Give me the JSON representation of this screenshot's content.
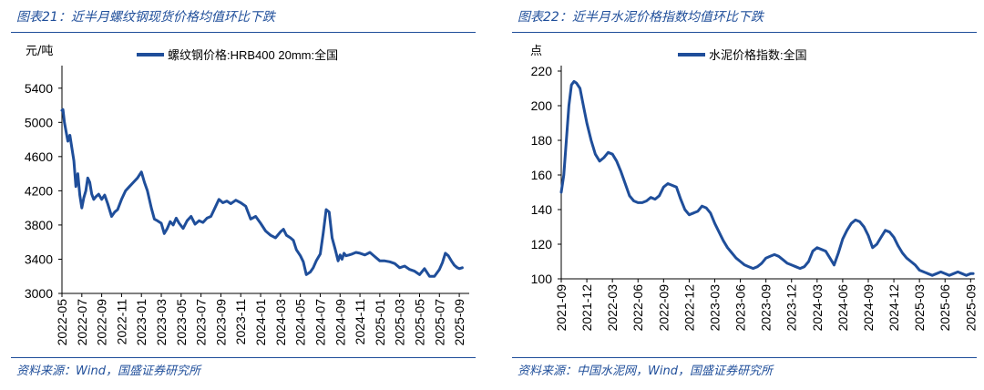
{
  "chart_data": [
    {
      "type": "line",
      "figure_title": "图表21：近半月螺纹钢现货价格均值环比下跌",
      "unit_label": "元/吨",
      "legend": "螺纹钢价格:HRB400 20mm:全国",
      "source": "资料来源：Wind，国盛证券研究所",
      "line_color": "#1f4e9a",
      "ylim": [
        3000,
        5600
      ],
      "yticks": [
        3000,
        3400,
        3800,
        4200,
        4600,
        5000,
        5400
      ],
      "xlim": [
        0,
        41
      ],
      "xtick_positions": [
        0,
        2,
        4,
        6,
        8,
        10,
        12,
        14,
        16,
        18,
        20,
        22,
        24,
        26,
        28,
        30,
        32,
        34,
        36,
        38,
        40
      ],
      "xtick_labels": [
        "2022-05",
        "2022-07",
        "2022-09",
        "2022-11",
        "2023-01",
        "2023-03",
        "2023-05",
        "2023-07",
        "2023-09",
        "2023-11",
        "2024-01",
        "2024-03",
        "2024-05",
        "2024-07",
        "2024-09",
        "2024-11",
        "2025-01",
        "2025-03",
        "2025-05",
        "2025-07",
        "2025-09"
      ],
      "x": [
        0,
        0.1,
        0.25,
        0.4,
        0.6,
        0.8,
        1.0,
        1.2,
        1.4,
        1.6,
        1.8,
        2.0,
        2.2,
        2.4,
        2.6,
        2.8,
        3.0,
        3.2,
        3.4,
        3.7,
        4.0,
        4.3,
        4.6,
        5.0,
        5.3,
        5.6,
        6.0,
        6.4,
        6.8,
        7.2,
        7.6,
        8.0,
        8.3,
        8.6,
        9.0,
        9.3,
        9.6,
        10.0,
        10.3,
        10.6,
        10.9,
        11.2,
        11.5,
        11.8,
        12.2,
        12.6,
        13.0,
        13.4,
        13.8,
        14.2,
        14.6,
        15.0,
        15.4,
        15.8,
        16.2,
        16.6,
        17.0,
        17.5,
        18.0,
        18.5,
        19.0,
        19.5,
        20.0,
        20.5,
        21.0,
        21.5,
        22.0,
        22.3,
        22.6,
        23.0,
        23.3,
        23.6,
        24.0,
        24.3,
        24.6,
        25.0,
        25.3,
        25.6,
        26.0,
        26.3,
        26.6,
        26.9,
        27.2,
        27.5,
        27.8,
        28.0,
        28.2,
        28.4,
        28.6,
        28.9,
        29.2,
        29.6,
        30.0,
        30.5,
        31.0,
        31.5,
        32.0,
        32.5,
        33.0,
        33.5,
        34.0,
        34.5,
        35.0,
        35.5,
        36.0,
        36.5,
        37.0,
        37.5,
        38.0,
        38.3,
        38.6,
        38.9,
        39.2,
        39.5,
        39.8,
        40.0,
        40.3
      ],
      "values": [
        5140,
        5150,
        5000,
        4900,
        4780,
        4850,
        4700,
        4550,
        4250,
        4400,
        4150,
        4000,
        4120,
        4200,
        4350,
        4300,
        4160,
        4100,
        4130,
        4160,
        4100,
        4150,
        4050,
        3900,
        3950,
        3980,
        4100,
        4200,
        4250,
        4300,
        4350,
        4420,
        4300,
        4200,
        4000,
        3870,
        3850,
        3820,
        3700,
        3760,
        3840,
        3800,
        3880,
        3820,
        3760,
        3850,
        3900,
        3810,
        3850,
        3830,
        3880,
        3900,
        4000,
        4100,
        4060,
        4080,
        4050,
        4090,
        4060,
        4020,
        3870,
        3900,
        3820,
        3730,
        3680,
        3650,
        3720,
        3750,
        3680,
        3650,
        3620,
        3510,
        3440,
        3370,
        3220,
        3250,
        3300,
        3380,
        3460,
        3700,
        3980,
        3950,
        3650,
        3520,
        3380,
        3450,
        3400,
        3470,
        3440,
        3450,
        3460,
        3480,
        3470,
        3450,
        3480,
        3430,
        3380,
        3380,
        3370,
        3350,
        3300,
        3320,
        3280,
        3260,
        3220,
        3290,
        3200,
        3200,
        3280,
        3360,
        3470,
        3440,
        3380,
        3330,
        3300,
        3290,
        3300
      ],
      "yaxis_labels": [
        "3000",
        "3400",
        "3800",
        "4200",
        "4600",
        "5000",
        "5400"
      ]
    },
    {
      "type": "line",
      "figure_title": "图表22：近半月水泥价格指数均值环比下跌",
      "unit_label": "点",
      "legend": "水泥价格指数:全国",
      "source": "资料来源：中国水泥网，Wind，国盛证券研究所",
      "line_color": "#1f4e9a",
      "ylim": [
        100,
        220
      ],
      "yticks": [
        100,
        120,
        140,
        160,
        180,
        200,
        220
      ],
      "xlim": [
        0,
        48.5
      ],
      "xtick_positions": [
        0,
        3,
        6,
        9,
        12,
        15,
        18,
        21,
        24,
        27,
        30,
        33,
        36,
        39,
        42,
        45,
        48
      ],
      "xtick_labels": [
        "2021-09",
        "2021-12",
        "2022-03",
        "2022-06",
        "2022-09",
        "2022-12",
        "2023-03",
        "2023-06",
        "2023-09",
        "2023-12",
        "2024-03",
        "2024-06",
        "2024-09",
        "2024-12",
        "2025-03",
        "2025-06",
        "2025-09"
      ],
      "x": [
        0,
        0.3,
        0.6,
        0.9,
        1.2,
        1.5,
        1.8,
        2.2,
        2.6,
        3.0,
        3.5,
        4.0,
        4.5,
        5.0,
        5.5,
        6.0,
        6.5,
        7.0,
        7.5,
        8.0,
        8.5,
        9.0,
        9.5,
        10.0,
        10.5,
        11.0,
        11.5,
        12.0,
        12.5,
        13.0,
        13.5,
        14.0,
        14.5,
        15.0,
        15.5,
        16.0,
        16.5,
        17.0,
        17.5,
        18.0,
        18.5,
        19.0,
        19.5,
        20.0,
        20.5,
        21.0,
        21.5,
        22.0,
        22.5,
        23.0,
        23.5,
        24.0,
        24.5,
        25.0,
        25.5,
        26.0,
        26.5,
        27.0,
        27.5,
        28.0,
        28.5,
        29.0,
        29.5,
        30.0,
        30.5,
        31.0,
        31.5,
        32.0,
        32.5,
        33.0,
        33.5,
        34.0,
        34.5,
        35.0,
        35.5,
        36.0,
        36.5,
        37.0,
        37.5,
        38.0,
        38.5,
        39.0,
        39.5,
        40.0,
        40.5,
        41.0,
        41.5,
        42.0,
        42.5,
        43.0,
        43.5,
        44.0,
        44.5,
        45.0,
        45.5,
        46.0,
        46.5,
        47.0,
        47.5,
        48.0,
        48.3
      ],
      "values": [
        150,
        160,
        180,
        200,
        212,
        214,
        213,
        210,
        200,
        190,
        180,
        172,
        168,
        170,
        173,
        172,
        168,
        162,
        155,
        148,
        145,
        144,
        144,
        145,
        147,
        146,
        148,
        153,
        155,
        154,
        153,
        146,
        140,
        137,
        138,
        139,
        142,
        141,
        138,
        132,
        127,
        122,
        118,
        115,
        112,
        110,
        108,
        107,
        106,
        107,
        109,
        112,
        113,
        114,
        113,
        111,
        109,
        108,
        107,
        106,
        107,
        110,
        116,
        118,
        117,
        116,
        112,
        108,
        115,
        123,
        128,
        132,
        134,
        133,
        130,
        125,
        118,
        120,
        124,
        128,
        127,
        124,
        119,
        115,
        112,
        110,
        108,
        105,
        104,
        103,
        102,
        103,
        104,
        103,
        102,
        103,
        104,
        103,
        102,
        103,
        103
      ],
      "yaxis_labels": [
        "100",
        "120",
        "140",
        "160",
        "180",
        "200",
        "220"
      ]
    }
  ]
}
